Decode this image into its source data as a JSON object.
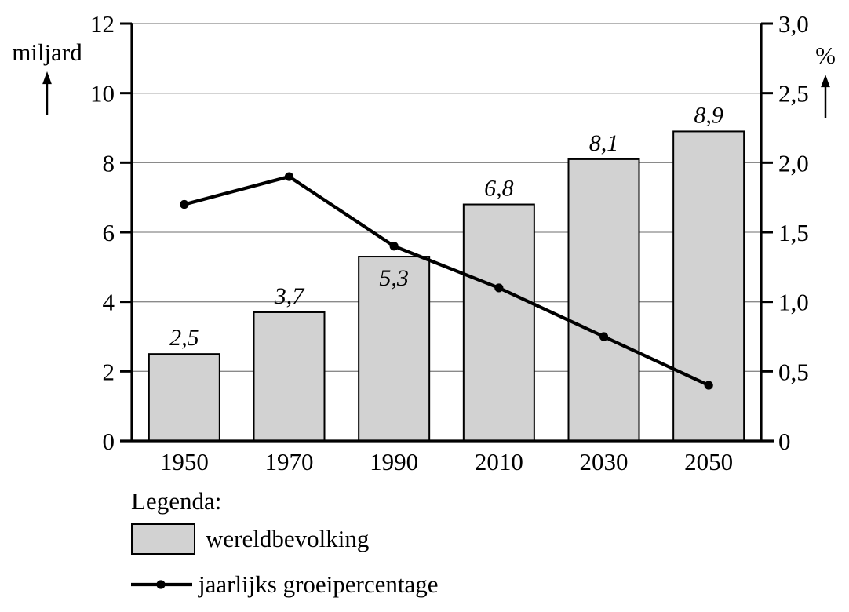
{
  "chart_data": {
    "type": "bar",
    "title": "",
    "categories": [
      "1950",
      "1970",
      "1990",
      "2010",
      "2030",
      "2050"
    ],
    "series": [
      {
        "name": "wereldbevolking",
        "type": "bar",
        "axis": "left",
        "values": [
          2.5,
          3.7,
          5.3,
          6.8,
          8.1,
          8.9
        ],
        "value_labels": [
          "2,5",
          "3,7",
          "5,3",
          "6,8",
          "8,1",
          "8,9"
        ],
        "value_label_placement": [
          "above",
          "above",
          "inside",
          "above",
          "above",
          "above"
        ],
        "fill": "#d2d2d2",
        "stroke": "#000000"
      },
      {
        "name": "jaarlijks groeipercentage",
        "type": "line",
        "axis": "right",
        "values": [
          1.7,
          1.9,
          1.4,
          1.1,
          0.75,
          0.4
        ],
        "color": "#000000",
        "marker": "dot"
      }
    ],
    "left_axis": {
      "label": "miljard",
      "min": 0,
      "max": 12,
      "tick_values": [
        12,
        10,
        8,
        6,
        4,
        2,
        0
      ],
      "tick_labels": [
        "12",
        "10",
        "8",
        "6",
        "4",
        "2",
        "0"
      ]
    },
    "right_axis": {
      "label": "%",
      "min": 0,
      "max": 3,
      "tick_values": [
        3,
        2.5,
        2,
        1.5,
        1,
        0.5,
        0
      ],
      "tick_labels": [
        "3,0",
        "2,5",
        "2,0",
        "1,5",
        "1,0",
        "0,5",
        "0"
      ]
    },
    "grid": true,
    "legend": {
      "title": "Legenda:",
      "position": "bottom-left",
      "items": [
        {
          "label": "wereldbevolking",
          "swatch": "bar"
        },
        {
          "label": "jaarlijks groeipercentage",
          "swatch": "line"
        }
      ]
    },
    "colors": {
      "bar_fill": "#d2d2d2",
      "line": "#000000",
      "grid": "#8a8a8a",
      "axis": "#000000",
      "text": "#000000",
      "background": "#ffffff"
    }
  }
}
